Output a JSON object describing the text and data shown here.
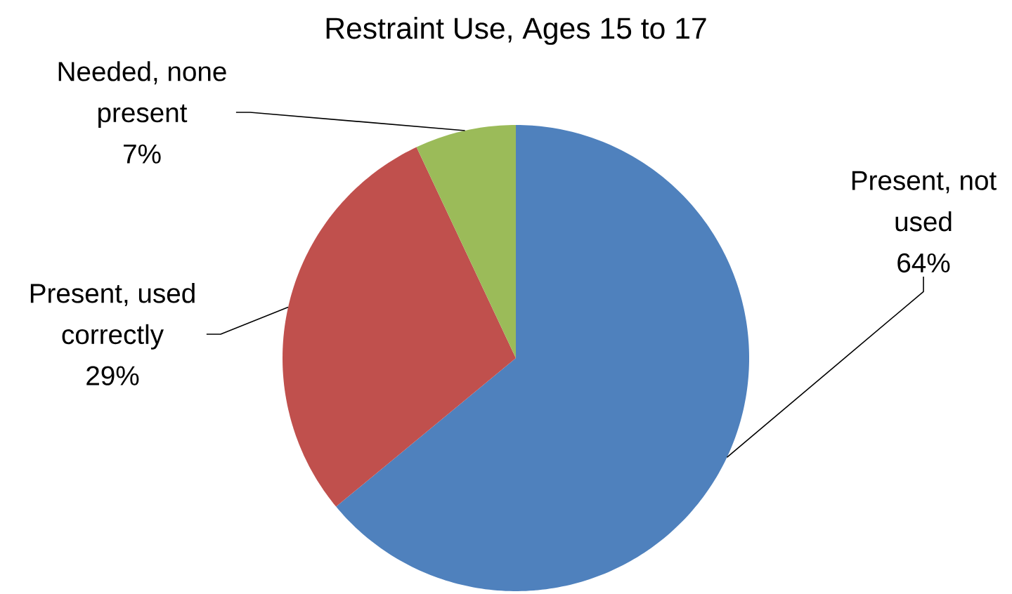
{
  "chart_data": {
    "type": "pie",
    "title": "Restraint Use, Ages 15 to 17",
    "categories": [
      "Present, not used",
      "Present, used correctly",
      "Needed, none present"
    ],
    "values": [
      64,
      29,
      7
    ],
    "colors": [
      "#4f81bd",
      "#c0504d",
      "#9bbb59"
    ],
    "value_labels": [
      "64%",
      "29%",
      "7%"
    ]
  }
}
